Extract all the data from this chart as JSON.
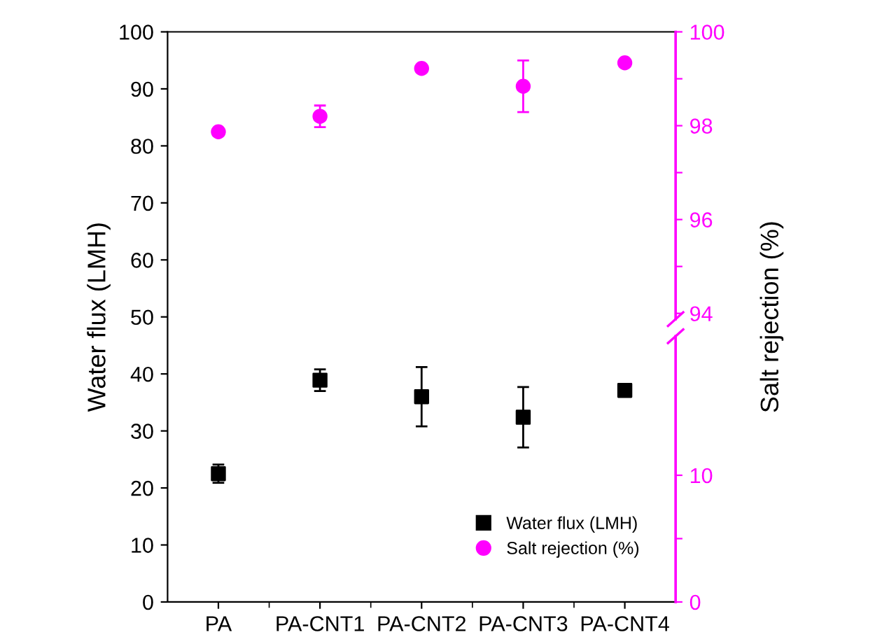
{
  "chart_data": {
    "type": "scatter",
    "ylabel": "Water flux (LMH)",
    "y2label": "Salt rejection (%)",
    "categories": [
      "PA",
      "PA-CNT1",
      "PA-CNT2",
      "PA-CNT3",
      "PA-CNT4"
    ],
    "series": [
      {
        "name": "Water flux (LMH)",
        "color": "#000000",
        "marker": "square",
        "values": [
          22.5,
          38.9,
          36.0,
          32.4,
          37.1
        ],
        "errors": [
          1.6,
          1.9,
          5.2,
          5.3,
          null
        ]
      },
      {
        "name": "Salt rejection (%)",
        "color": "#ff00ff",
        "marker": "circle",
        "axis": "y2",
        "values": [
          97.87,
          98.2,
          99.22,
          98.84,
          99.34
        ],
        "errors": [
          null,
          0.23,
          null,
          0.55,
          null
        ]
      }
    ],
    "ylim": [
      0,
      100
    ],
    "yticks": [
      0,
      10,
      20,
      30,
      40,
      50,
      60,
      70,
      80,
      90,
      100
    ],
    "y2lim": [
      87.85,
      100
    ],
    "y2ticks": [
      94,
      {
        "value": 95,
        "label": null
      },
      96,
      {
        "value": 97,
        "label": null
      },
      98,
      {
        "value": 99,
        "label": null
      },
      100
    ],
    "y3lim": [
      0,
      45
    ],
    "y3ticks": [
      0,
      {
        "value": 5,
        "label": null
      },
      10
    ],
    "grid": false,
    "legend": "bottom right"
  }
}
